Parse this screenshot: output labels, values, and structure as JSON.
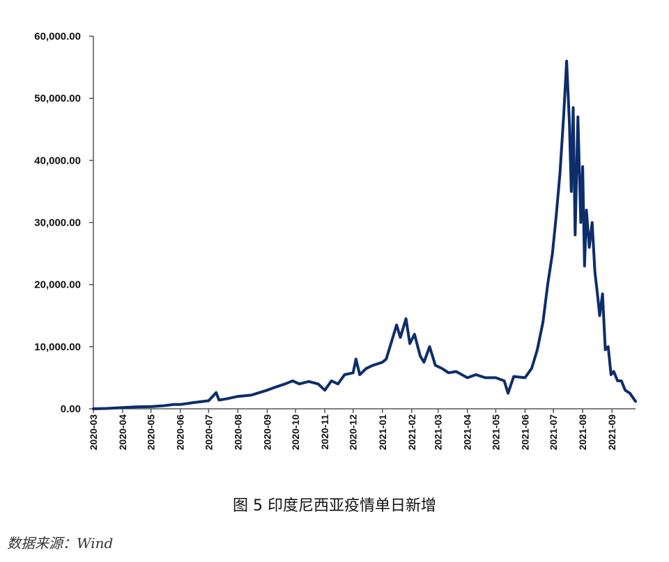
{
  "caption": "图 5  印度尼西亚疫情单日新增",
  "source": "数据来源：Wind",
  "colors": {
    "series": "#0d2d6b",
    "axis": "#555555"
  },
  "chart_data": {
    "type": "line",
    "title": "",
    "xlabel": "",
    "ylabel": "",
    "ylim": [
      0,
      60000
    ],
    "y_ticks": [
      "0.00",
      "10,000.00",
      "20,000.00",
      "30,000.00",
      "40,000.00",
      "50,000.00",
      "60,000.00"
    ],
    "y_tick_values": [
      0,
      10000,
      20000,
      30000,
      40000,
      50000,
      60000
    ],
    "x_ticks": [
      "2020-03",
      "2020-04",
      "2020-05",
      "2020-06",
      "2020-07",
      "2020-08",
      "2020-09",
      "2020-10",
      "2020-11",
      "2020-12",
      "2021-01",
      "2021-02",
      "2021-03",
      "2021-04",
      "2021-05",
      "2021-06",
      "2021-07",
      "2021-08",
      "2021-09"
    ],
    "xlim": [
      "2020-03-01",
      "2021-09-26"
    ],
    "grid": false,
    "legend": "none",
    "series": [
      {
        "x": [
          "2020-03-01",
          "2020-03-15",
          "2020-04-01",
          "2020-04-15",
          "2020-05-01",
          "2020-05-15",
          "2020-05-25",
          "2020-06-01",
          "2020-06-15",
          "2020-07-01",
          "2020-07-09",
          "2020-07-12",
          "2020-07-20",
          "2020-08-01",
          "2020-08-15",
          "2020-09-01",
          "2020-09-10",
          "2020-09-20",
          "2020-09-28",
          "2020-10-05",
          "2020-10-15",
          "2020-10-25",
          "2020-11-01",
          "2020-11-08",
          "2020-11-15",
          "2020-11-22",
          "2020-12-01",
          "2020-12-04",
          "2020-12-08",
          "2020-12-15",
          "2020-12-22",
          "2021-01-01",
          "2021-01-05",
          "2021-01-10",
          "2021-01-16",
          "2021-01-20",
          "2021-01-26",
          "2021-01-30",
          "2021-02-04",
          "2021-02-10",
          "2021-02-14",
          "2021-02-20",
          "2021-02-26",
          "2021-03-05",
          "2021-03-12",
          "2021-03-20",
          "2021-04-01",
          "2021-04-10",
          "2021-04-20",
          "2021-05-01",
          "2021-05-10",
          "2021-05-14",
          "2021-05-20",
          "2021-06-01",
          "2021-06-08",
          "2021-06-14",
          "2021-06-20",
          "2021-06-25",
          "2021-06-30",
          "2021-07-04",
          "2021-07-08",
          "2021-07-12",
          "2021-07-15",
          "2021-07-18",
          "2021-07-20",
          "2021-07-22",
          "2021-07-24",
          "2021-07-27",
          "2021-07-30",
          "2021-08-01",
          "2021-08-03",
          "2021-08-05",
          "2021-08-08",
          "2021-08-11",
          "2021-08-14",
          "2021-08-17",
          "2021-08-19",
          "2021-08-22",
          "2021-08-25",
          "2021-08-28",
          "2021-08-31",
          "2021-09-03",
          "2021-09-07",
          "2021-09-11",
          "2021-09-15",
          "2021-09-20",
          "2021-09-26"
        ],
        "values": [
          0,
          60,
          200,
          300,
          350,
          500,
          700,
          700,
          1000,
          1300,
          2600,
          1400,
          1600,
          2000,
          2200,
          3000,
          3500,
          4000,
          4500,
          4000,
          4400,
          4000,
          3000,
          4500,
          4000,
          5500,
          5800,
          8000,
          5500,
          6500,
          7000,
          7500,
          8000,
          10500,
          13500,
          11500,
          14500,
          10500,
          12000,
          8500,
          7500,
          10000,
          7000,
          6500,
          5800,
          6000,
          5000,
          5500,
          5000,
          5000,
          4500,
          2500,
          5200,
          5000,
          6500,
          9500,
          14000,
          20000,
          25000,
          31000,
          38000,
          47500,
          56000,
          46000,
          35000,
          48500,
          28000,
          47000,
          30000,
          39000,
          23000,
          32000,
          26000,
          30000,
          22000,
          18000,
          15000,
          18500,
          9500,
          10000,
          5500,
          6000,
          4500,
          4500,
          3000,
          2500,
          1200
        ]
      }
    ]
  }
}
